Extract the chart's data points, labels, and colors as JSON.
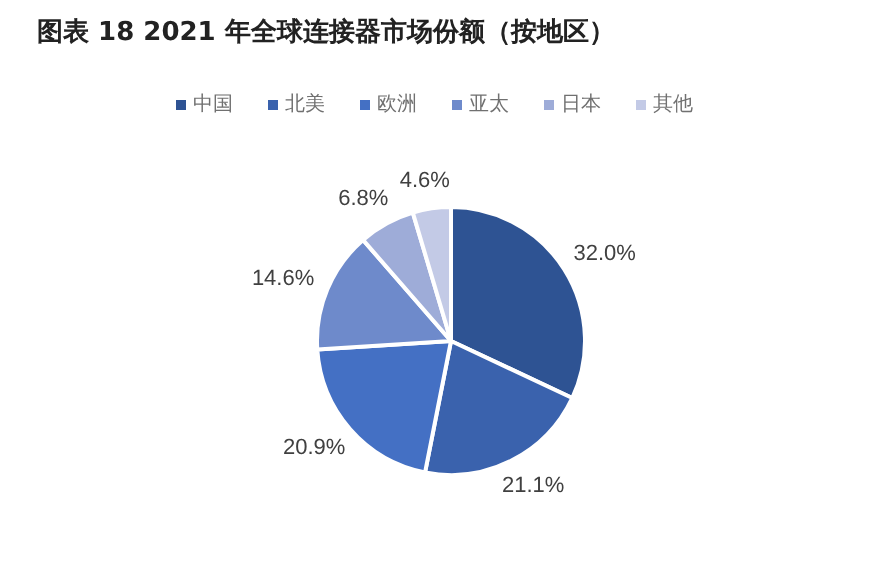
{
  "chart_data": {
    "type": "pie",
    "title": "图表 18 2021 年全球连接器市场份额（按地区）",
    "categories": [
      "中国",
      "北美",
      "欧洲",
      "亚太",
      "日本",
      "其他"
    ],
    "values": [
      32.0,
      21.1,
      20.9,
      14.6,
      6.8,
      4.6
    ],
    "value_labels": [
      "32.0%",
      "21.1%",
      "20.9%",
      "14.6%",
      "6.8%",
      "4.6%"
    ],
    "colors": [
      "#2e5393",
      "#3a62ad",
      "#4470c4",
      "#6e8acb",
      "#9eacd8",
      "#c3cae6"
    ],
    "legend": "top"
  }
}
